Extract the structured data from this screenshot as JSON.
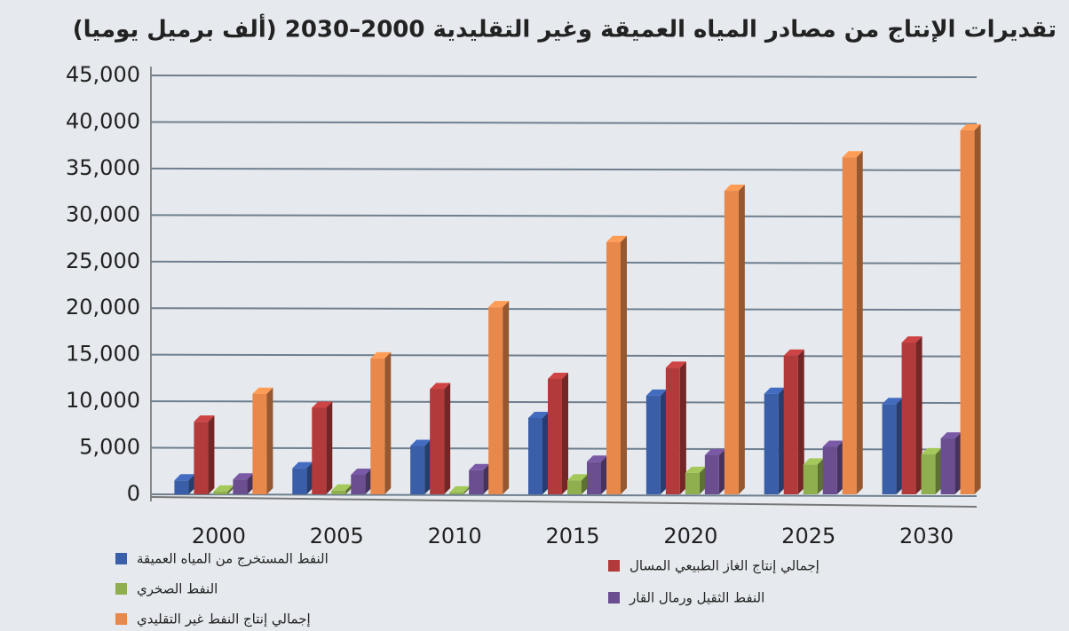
{
  "chart_data": {
    "type": "bar3d",
    "title": "تقديرات الإنتاج من مصادر المياه العميقة وغير التقليدية 2000–2030 (ألف برميل يوميا)",
    "categories": [
      "2000",
      "2005",
      "2010",
      "2015",
      "2020",
      "2025",
      "2030"
    ],
    "series": [
      {
        "name": "النفط المستخرج من المياه العميقة",
        "color": "#3a5ea8",
        "values": [
          1500,
          2800,
          5200,
          8200,
          10600,
          10800,
          9700
        ]
      },
      {
        "name": "إجمالي إنتاج الغاز الطبيعي المسال",
        "color": "#b33a3a",
        "values": [
          7800,
          9300,
          11300,
          12400,
          13600,
          14900,
          16300
        ]
      },
      {
        "name": "النفط الصخري",
        "color": "#8fae4e",
        "values": [
          300,
          400,
          200,
          1500,
          2300,
          3200,
          4300
        ]
      },
      {
        "name": "النفط الثقيل ورمال القار",
        "color": "#6a4e90",
        "values": [
          1600,
          2100,
          2600,
          3500,
          4200,
          5100,
          6000
        ]
      },
      {
        "name": "إجمالي إنتاج النفط غير التقليدي",
        "color": "#e8884a",
        "values": [
          10800,
          14600,
          20100,
          27100,
          32600,
          36200,
          39100
        ]
      }
    ],
    "ylim": [
      0,
      45000
    ],
    "yticks": [
      0,
      {
        "value": 5000,
        "label": "5,000"
      },
      {
        "value": 10000,
        "label": "10,000"
      },
      {
        "value": 15000,
        "label": "15,000"
      },
      {
        "value": 20000,
        "label": "20,000"
      },
      {
        "value": 25000,
        "label": "25,000"
      },
      {
        "value": 30000,
        "label": "30,000"
      },
      {
        "value": 35000,
        "label": "35,000"
      },
      {
        "value": 40000,
        "label": "40,000"
      },
      {
        "value": 45000,
        "label": "45,000"
      }
    ],
    "grid": true
  }
}
